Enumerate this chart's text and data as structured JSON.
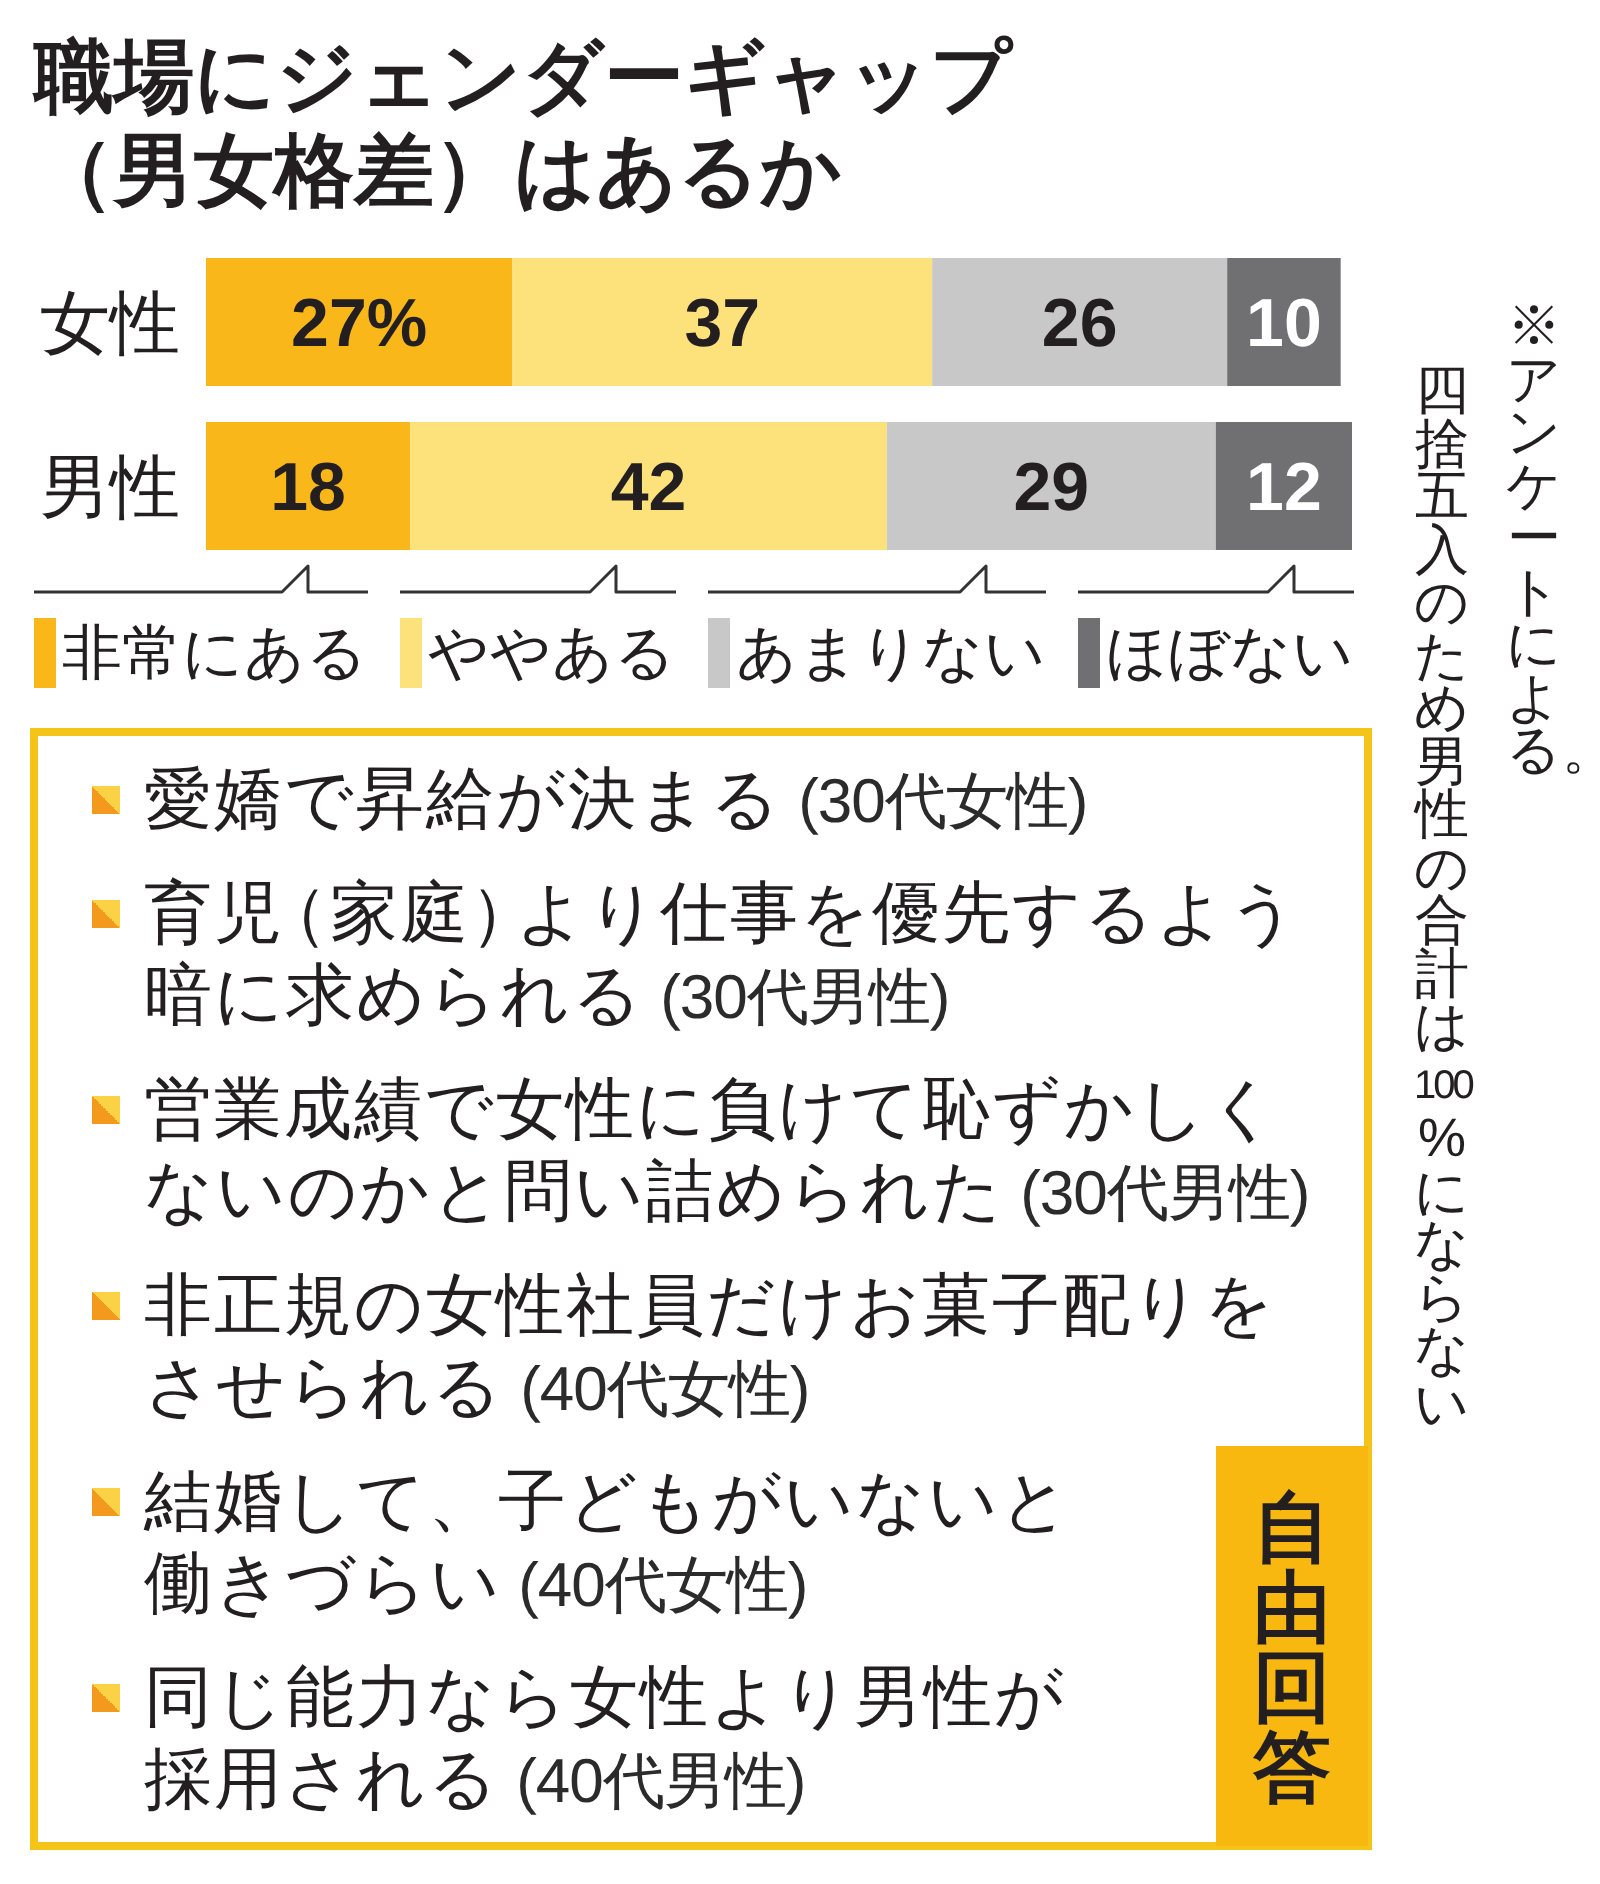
{
  "chart_data": [
    {
      "type": "bar",
      "orientation": "horizontal",
      "stacked": true,
      "title": "職場にジェンダーギャップ（男女格差）はあるか",
      "categories": [
        "女性",
        "男性"
      ],
      "series": [
        {
          "name": "非常にある",
          "color": "#f9b719",
          "values": [
            27,
            18
          ],
          "value_labels": [
            "27%",
            "18"
          ]
        },
        {
          "name": "ややある",
          "color": "#fde17a",
          "values": [
            37,
            42
          ],
          "value_labels": [
            "37",
            "42"
          ]
        },
        {
          "name": "あまりない",
          "color": "#c8c8c8",
          "values": [
            26,
            29
          ],
          "value_labels": [
            "26",
            "29"
          ]
        },
        {
          "name": "ほぼない",
          "color": "#707072",
          "values": [
            10,
            12
          ],
          "value_labels": [
            "10",
            "12"
          ]
        }
      ],
      "legend": "bottom",
      "annotations": [
        "※アンケートによる。",
        "四捨五入のため男性の合計は100%にならない"
      ]
    },
    {
      "type": "other",
      "title": "自由回答",
      "annotations": [
        "愛嬌で昇給が決まる (30代女性)",
        "育児（家庭）より仕事を優先するよう暗に求められる (30代男性)",
        "営業成績で女性に負けて恥ずかしくないのかと問い詰められた (30代男性)",
        "非正規の女性社員だけお菓子配りをさせられる (40代女性)",
        "結婚して、子どもがいないと働きづらい (40代女性)",
        "同じ能力なら女性より男性が採用される (40代男性)"
      ]
    }
  ]
}
